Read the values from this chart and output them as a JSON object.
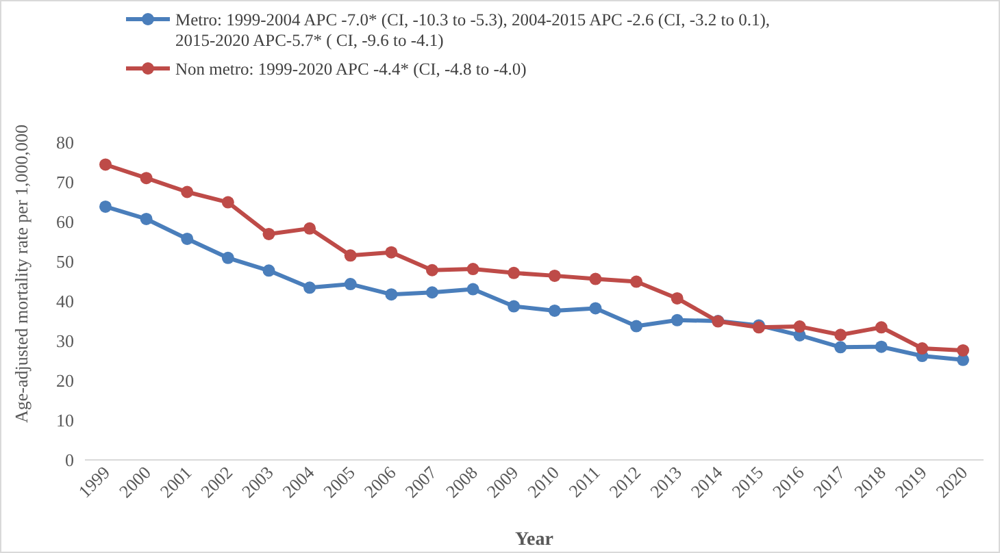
{
  "chart_data": {
    "type": "line",
    "xlabel": "Year",
    "ylabel": "Age-adjusted mortality rate per 1,000,000",
    "categories": [
      "1999",
      "2000",
      "2001",
      "2002",
      "2003",
      "2004",
      "2005",
      "2006",
      "2007",
      "2008",
      "2009",
      "2010",
      "2011",
      "2012",
      "2013",
      "2014",
      "2015",
      "2016",
      "2017",
      "2018",
      "2019",
      "2020"
    ],
    "series": [
      {
        "name": "Metro: 1999-2004 APC -7.0* (CI, -10.3 to -5.3), 2004-2015 APC -2.6 (CI, -3.2 to 0.1), 2015-2020 APC-5.7* ( CI, -9.6 to -4.1)",
        "color": "#4a7ebb",
        "values": [
          63.8,
          60.7,
          55.7,
          50.9,
          47.7,
          43.4,
          44.3,
          41.7,
          42.2,
          43.0,
          38.7,
          37.6,
          38.2,
          33.7,
          35.2,
          35.0,
          33.9,
          31.4,
          28.4,
          28.5,
          26.2,
          25.2
        ]
      },
      {
        "name": "Non metro: 1999-2020 APC -4.4* (CI, -4.8 to -4.0)",
        "color": "#be4b48",
        "values": [
          74.4,
          71.0,
          67.5,
          64.9,
          56.9,
          58.3,
          51.5,
          52.3,
          47.8,
          48.1,
          47.1,
          46.4,
          45.6,
          44.9,
          40.7,
          34.9,
          33.4,
          33.6,
          31.5,
          33.4,
          28.1,
          27.6
        ]
      }
    ],
    "ylim": [
      0,
      80
    ],
    "yticks": [
      0,
      10,
      20,
      30,
      40,
      50,
      60,
      70,
      80
    ],
    "grid": false,
    "legend": "top",
    "marker": "circle",
    "line_style": "solid"
  }
}
